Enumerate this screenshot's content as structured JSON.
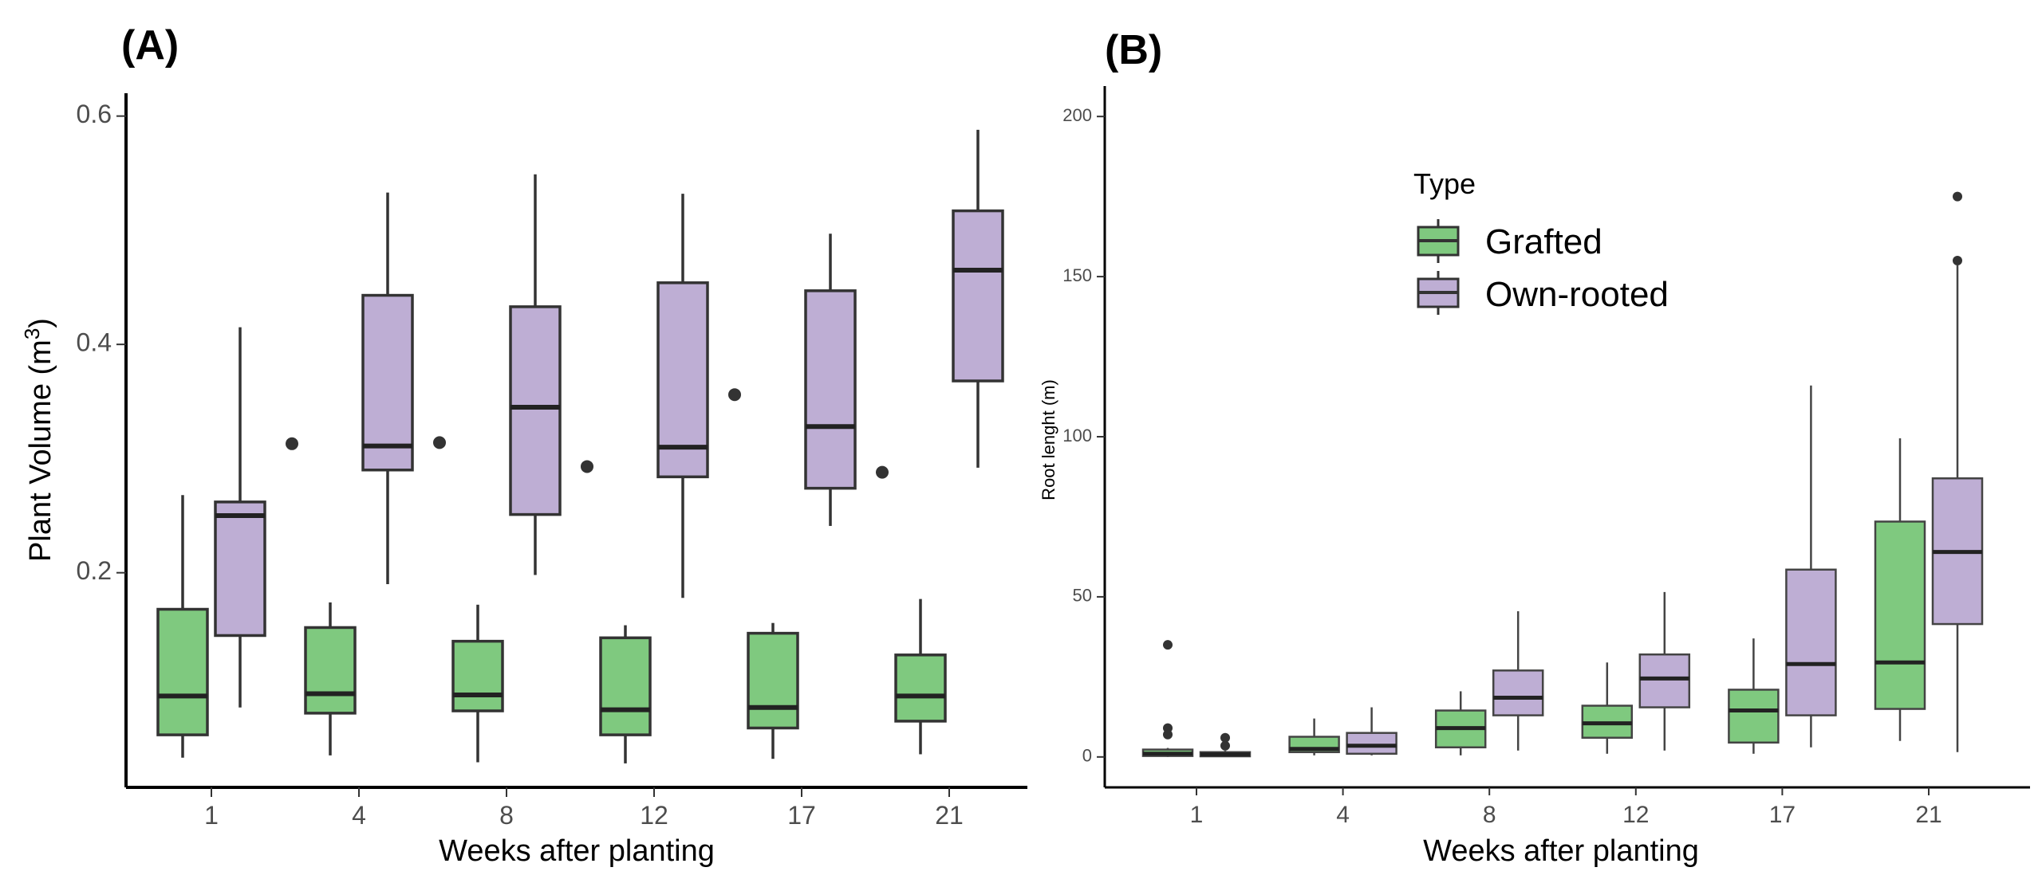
{
  "colors": {
    "Grafted": "#7fc97f",
    "Own-rooted": "#beaed4"
  },
  "chart_data": [
    {
      "panel": "(A)",
      "type": "box",
      "xlabel": "Weeks after planting",
      "ylabel": "Plant Volume (m",
      "ylabel_sup": "3",
      "ylabel_tail": ")",
      "categories": [
        "1",
        "4",
        "8",
        "12",
        "17",
        "21"
      ],
      "yticks": [
        0.2,
        0.4,
        0.6
      ],
      "ylim": [
        0.012,
        0.62
      ],
      "legend": "none",
      "grid": false,
      "series": [
        {
          "name": "Grafted",
          "boxes": [
            {
              "min": 0.038,
              "q1": 0.058,
              "median": 0.092,
              "q3": 0.168,
              "max": 0.268,
              "outliers": []
            },
            {
              "min": 0.04,
              "q1": 0.077,
              "median": 0.094,
              "q3": 0.152,
              "max": 0.174,
              "outliers": []
            },
            {
              "min": 0.034,
              "q1": 0.079,
              "median": 0.093,
              "q3": 0.14,
              "max": 0.172,
              "outliers": []
            },
            {
              "min": 0.033,
              "q1": 0.058,
              "median": 0.08,
              "q3": 0.143,
              "max": 0.154,
              "outliers": []
            },
            {
              "min": 0.037,
              "q1": 0.064,
              "median": 0.082,
              "q3": 0.147,
              "max": 0.156,
              "outliers": []
            },
            {
              "min": 0.041,
              "q1": 0.07,
              "median": 0.092,
              "q3": 0.128,
              "max": 0.177,
              "outliers": []
            }
          ]
        },
        {
          "name": "Own-rooted",
          "boxes": [
            {
              "min": 0.082,
              "q1": 0.145,
              "median": 0.25,
              "q3": 0.262,
              "max": 0.415,
              "outliers": []
            },
            {
              "min": 0.19,
              "q1": 0.29,
              "median": 0.311,
              "q3": 0.443,
              "max": 0.533,
              "outliers": [
                0.313
              ]
            },
            {
              "min": 0.198,
              "q1": 0.251,
              "median": 0.345,
              "q3": 0.433,
              "max": 0.549,
              "outliers": [
                0.314
              ]
            },
            {
              "min": 0.178,
              "q1": 0.284,
              "median": 0.31,
              "q3": 0.454,
              "max": 0.532,
              "outliers": [
                0.293
              ]
            },
            {
              "min": 0.241,
              "q1": 0.274,
              "median": 0.328,
              "q3": 0.447,
              "max": 0.497,
              "outliers": [
                0.356
              ]
            },
            {
              "min": 0.292,
              "q1": 0.368,
              "median": 0.465,
              "q3": 0.517,
              "max": 0.588,
              "outliers": [
                0.288
              ]
            }
          ]
        }
      ]
    },
    {
      "panel": "(B)",
      "type": "box",
      "xlabel": "Weeks after planting",
      "ylabel": "Root lenght (m)",
      "categories": [
        "1",
        "4",
        "8",
        "12",
        "17",
        "21"
      ],
      "yticks": [
        0,
        50,
        100,
        150,
        200
      ],
      "ylim": [
        -9.5,
        209.5
      ],
      "legend": "top-center",
      "legend_title": "Type",
      "grid": false,
      "series": [
        {
          "name": "Grafted",
          "boxes": [
            {
              "min": 0,
              "q1": 0.3,
              "median": 1,
              "q3": 2.3,
              "max": 2.8,
              "outliers": [
                35,
                9,
                7
              ]
            },
            {
              "min": 0.5,
              "q1": 1.5,
              "median": 2.5,
              "q3": 6.3,
              "max": 12,
              "outliers": []
            },
            {
              "min": 0.5,
              "q1": 3,
              "median": 9,
              "q3": 14.5,
              "max": 20.5,
              "outliers": []
            },
            {
              "min": 1,
              "q1": 6,
              "median": 10.5,
              "q3": 16,
              "max": 29.5,
              "outliers": []
            },
            {
              "min": 1,
              "q1": 4.5,
              "median": 14.5,
              "q3": 21,
              "max": 37,
              "outliers": []
            },
            {
              "min": 5,
              "q1": 15,
              "median": 29.5,
              "q3": 73.5,
              "max": 99.5,
              "outliers": []
            }
          ]
        },
        {
          "name": "Own-rooted",
          "boxes": [
            {
              "min": 0,
              "q1": 0.2,
              "median": 0.8,
              "q3": 1.5,
              "max": 2,
              "outliers": [
                6,
                3.5
              ]
            },
            {
              "min": 0.5,
              "q1": 1,
              "median": 3.5,
              "q3": 7.5,
              "max": 15.5,
              "outliers": []
            },
            {
              "min": 2,
              "q1": 13,
              "median": 18.5,
              "q3": 27,
              "max": 45.5,
              "outliers": []
            },
            {
              "min": 2,
              "q1": 15.5,
              "median": 24.5,
              "q3": 32,
              "max": 51.5,
              "outliers": []
            },
            {
              "min": 3,
              "q1": 13,
              "median": 29,
              "q3": 58.5,
              "max": 116,
              "outliers": []
            },
            {
              "min": 1.5,
              "q1": 41.5,
              "median": 64,
              "q3": 87,
              "max": 153.5,
              "outliers": [
                175,
                155
              ]
            }
          ]
        }
      ]
    }
  ]
}
